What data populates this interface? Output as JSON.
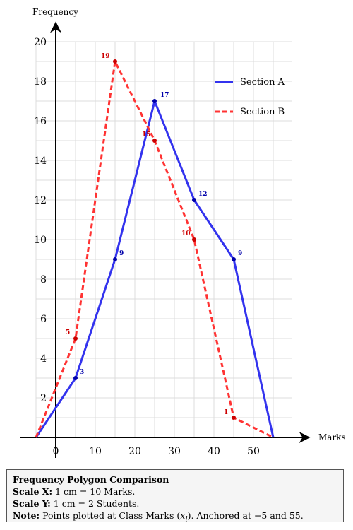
{
  "chart_data": {
    "type": "line",
    "xlabel": "Marks",
    "ylabel": "Frequency",
    "xlim": [
      -5,
      58
    ],
    "ylim": [
      0,
      20.5
    ],
    "xticks": [
      0,
      10,
      20,
      30,
      40,
      50
    ],
    "yticks": [
      2,
      4,
      6,
      8,
      10,
      12,
      14,
      16,
      18,
      20
    ],
    "grid": true,
    "legend_position": "top-right",
    "series": [
      {
        "name": "Section A",
        "color": "#3333ee",
        "label_color": "#0000aa",
        "style": "solid",
        "points": [
          [
            -5,
            0
          ],
          [
            5,
            3
          ],
          [
            15,
            9
          ],
          [
            25,
            17
          ],
          [
            35,
            12
          ],
          [
            45,
            9
          ],
          [
            55,
            0
          ]
        ],
        "labeled_points": [
          {
            "x": 5,
            "y": 3,
            "label": "3"
          },
          {
            "x": 15,
            "y": 9,
            "label": "9"
          },
          {
            "x": 25,
            "y": 17,
            "label": "17"
          },
          {
            "x": 35,
            "y": 12,
            "label": "12"
          },
          {
            "x": 45,
            "y": 9,
            "label": "9"
          }
        ]
      },
      {
        "name": "Section B",
        "color": "#ff3333",
        "label_color": "#cc0000",
        "style": "dashed",
        "points": [
          [
            -5,
            0
          ],
          [
            5,
            5
          ],
          [
            15,
            19
          ],
          [
            25,
            15
          ],
          [
            35,
            10
          ],
          [
            45,
            1
          ],
          [
            55,
            0
          ]
        ],
        "labeled_points": [
          {
            "x": 5,
            "y": 5,
            "label": "5"
          },
          {
            "x": 15,
            "y": 19,
            "label": "19"
          },
          {
            "x": 25,
            "y": 15,
            "label": "15"
          },
          {
            "x": 35,
            "y": 10,
            "label": "10"
          },
          {
            "x": 45,
            "y": 1,
            "label": "1"
          }
        ]
      }
    ]
  },
  "note": {
    "title": "Frequency Polygon Comparison",
    "scale_x_label": "Scale X:",
    "scale_x_text": "1 cm = 10 Marks.",
    "scale_y_label": "Scale Y:",
    "scale_y_text": "1 cm = 2 Students.",
    "note_label": "Note:",
    "note_text_before": "Points plotted at Class Marks (",
    "note_symbol": "x",
    "note_subscript": "i",
    "note_text_after": "). Anchored at −5 and 55."
  }
}
